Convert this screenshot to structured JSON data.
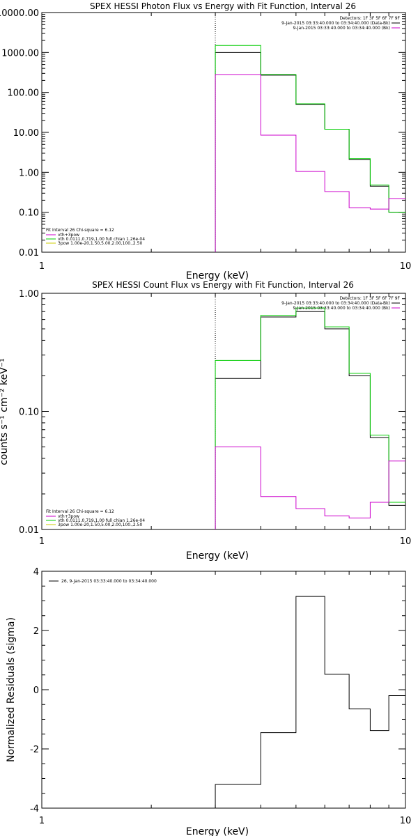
{
  "chart_data": [
    {
      "type": "line",
      "title": "SPEX HESSI Photon Flux vs Energy with Fit Function, Interval 26",
      "xlabel": "Energy (keV)",
      "ylabel": "",
      "xscale": "log",
      "yscale": "log",
      "xlim": [
        1,
        10
      ],
      "ylim": [
        0.01,
        10000
      ],
      "x_tick_labels": [
        "1",
        "10"
      ],
      "y_tick_labels": [
        "0.01",
        "0.10",
        "1.00",
        "10.00",
        "100.00",
        "1000.00",
        "10000.00"
      ],
      "vline_x": 3,
      "bin_edges": [
        3,
        4,
        5,
        6,
        7,
        8,
        9,
        10
      ],
      "series": [
        {
          "values": [
            1000,
            270,
            50,
            12,
            2.1,
            0.45,
            0.1
          ],
          "color": "#000000"
        },
        {
          "values": [
            1500,
            280,
            52,
            12,
            2.2,
            0.48,
            0.1
          ],
          "color": "#00cc00"
        },
        {
          "values": [
            280,
            8.5,
            1.05,
            0.33,
            0.13,
            0.12,
            0.22
          ],
          "color": "#cc00cc"
        }
      ],
      "legend_top": {
        "header": "Detectors: 1F 3F 5F 6F 7F 9F",
        "lines": [
          {
            "text": "9-Jan-2015 03:33:40.000 to 03:34:40.000 (Data-Bk)",
            "color": "#000000"
          },
          {
            "text": "9-Jan-2015 03:33:40.000 to 03:34:40.000 (Bk)",
            "color": "#cc00cc"
          }
        ]
      },
      "legend_bottom": {
        "header": "Fit Interval 26   Chi-square = 6.12",
        "lines": [
          {
            "text": "vth+3pow",
            "color": "#cc00cc"
          },
          {
            "text": "vth 0.0111,0.719,1.00  full chian 1.26e-04",
            "color": "#00cc00"
          },
          {
            "text": "3pow 1.00e-20,1.50,5.00,2.00,100.,2.50",
            "color": "#cccc00"
          }
        ]
      }
    },
    {
      "type": "line",
      "title": "SPEX HESSI Count Flux vs Energy with Fit Function, Interval 26",
      "xlabel": "Energy (keV)",
      "ylabel": "counts s⁻¹ cm⁻² keV⁻¹",
      "xscale": "log",
      "yscale": "log",
      "xlim": [
        1,
        10
      ],
      "ylim": [
        0.01,
        1
      ],
      "x_tick_labels": [
        "1",
        "10"
      ],
      "y_tick_labels": [
        "0.01",
        "0.10",
        "1.00"
      ],
      "vline_x": 3,
      "bin_edges": [
        3,
        4,
        5,
        6,
        7,
        8,
        9,
        10
      ],
      "series": [
        {
          "values": [
            0.19,
            0.63,
            0.7,
            0.5,
            0.2,
            0.06,
            0.016
          ],
          "color": "#000000"
        },
        {
          "values": [
            0.27,
            0.65,
            0.75,
            0.52,
            0.21,
            0.063,
            0.017
          ],
          "color": "#00cc00"
        },
        {
          "values": [
            0.05,
            0.019,
            0.015,
            0.013,
            0.0125,
            0.017,
            0.038
          ],
          "color": "#cc00cc"
        }
      ],
      "legend_top": {
        "header": "Detectors: 1F 3F 5F 6F 7F 9F",
        "lines": [
          {
            "text": "9-Jan-2015 03:33:40.000 to 03:34:40.000 (Data-Bk)",
            "color": "#000000"
          },
          {
            "text": "9-Jan-2015 03:33:40.000 to 03:34:40.000 (Bk)",
            "color": "#cc00cc"
          }
        ]
      },
      "legend_bottom": {
        "header": "Fit Interval 26   Chi-square = 6.12",
        "lines": [
          {
            "text": "vth+3pow",
            "color": "#cc00cc"
          },
          {
            "text": "vth 0.0111,0.719,1.00  full chian 1.26e-04",
            "color": "#00cc00"
          },
          {
            "text": "3pow 1.00e-20,1.50,5.00,2.00,100.,2.50",
            "color": "#cccc00"
          }
        ]
      }
    },
    {
      "type": "line",
      "title": "",
      "xlabel": "Energy (keV)",
      "ylabel": "Normalized Residuals (sigma)",
      "xscale": "log",
      "yscale": "linear",
      "xlim": [
        1,
        10
      ],
      "ylim": [
        -4,
        4
      ],
      "x_tick_labels": [
        "1",
        "10"
      ],
      "y_tick_labels": [
        "-4",
        "-2",
        "0",
        "2",
        "4"
      ],
      "bin_edges": [
        3,
        4,
        5,
        6,
        7,
        8,
        9,
        10
      ],
      "series": [
        {
          "values": [
            -3.2,
            -1.45,
            3.15,
            0.52,
            -0.65,
            -1.38,
            -0.2
          ],
          "color": "#000000"
        }
      ],
      "legend": [
        {
          "text": "26,  9-Jan-2015 03:33:40.000 to 03:34:40.000",
          "color": "#000000"
        }
      ]
    }
  ]
}
